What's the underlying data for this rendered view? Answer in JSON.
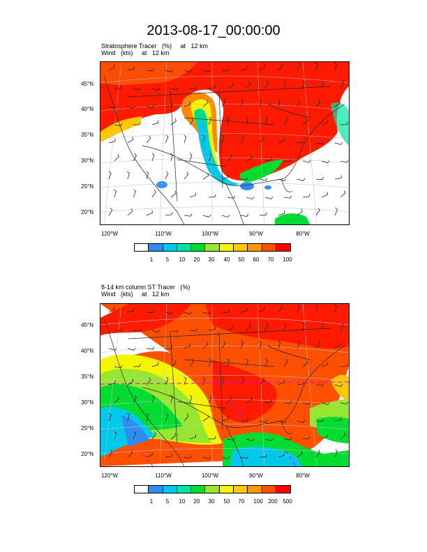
{
  "title": "2013-08-17_00:00:00",
  "panels": [
    {
      "title_line1": "Stratosphere Tracer   (%)     at   12 km",
      "title_line2": "Wind   (kts)     at   12 km",
      "lat_labels": [
        "45°N",
        "40°N",
        "35°N",
        "30°N",
        "25°N",
        "20°N"
      ],
      "lon_labels": [
        "120°W",
        "110°W",
        "100°W",
        "90°W",
        "80°W"
      ],
      "colorbar_labels": [
        "1",
        "5",
        "10",
        "20",
        "30",
        "40",
        "50",
        "60",
        "70",
        "100"
      ]
    },
    {
      "title_line1": "8-14 km column ST Tracer   (%)",
      "title_line2": "Wind   (kts)     at   12 km",
      "lat_labels": [
        "45°N",
        "40°N",
        "35°N",
        "30°N",
        "25°N",
        "20°N"
      ],
      "lon_labels": [
        "120°W",
        "110°W",
        "100°W",
        "90°W",
        "80°W"
      ],
      "colorbar_labels": [
        "1",
        "5",
        "10",
        "20",
        "30",
        "50",
        "70",
        "100",
        "200",
        "500"
      ]
    }
  ],
  "colorbar_colors": [
    "#ffffff",
    "#2f8cf2",
    "#00c8ea",
    "#00e5a0",
    "#00dc32",
    "#96e632",
    "#f5f500",
    "#ffc800",
    "#ff9600",
    "#ff5000",
    "#ff0000"
  ]
}
